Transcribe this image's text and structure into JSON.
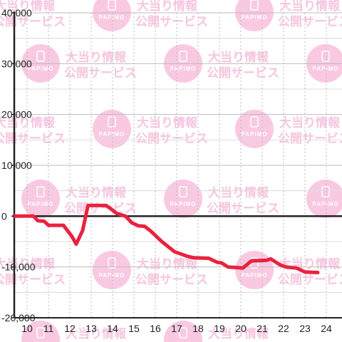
{
  "chart_data": {
    "type": "line",
    "title": "",
    "xlabel": "",
    "ylabel": "",
    "xlim": [
      9.4,
      24.3
    ],
    "ylim": [
      -20000,
      40000
    ],
    "x_ticks": [
      "10",
      "11",
      "12",
      "13",
      "14",
      "15",
      "16",
      "17",
      "18",
      "19",
      "20",
      "21",
      "22",
      "23",
      "24"
    ],
    "y_ticks": [
      "40,000",
      "30,000",
      "20,000",
      "10,000",
      "0",
      "-10,000",
      "-20,000"
    ],
    "y_tick_values": [
      40000,
      30000,
      20000,
      10000,
      0,
      -10000,
      -20000
    ],
    "grid": true,
    "series": [
      {
        "color": "#e8233f",
        "points": [
          [
            9.4,
            0
          ],
          [
            10.3,
            0
          ],
          [
            10.5,
            -900
          ],
          [
            10.8,
            -1000
          ],
          [
            11.0,
            -1800
          ],
          [
            11.7,
            -1800
          ],
          [
            12.1,
            -4000
          ],
          [
            12.3,
            -5500
          ],
          [
            12.6,
            -2800
          ],
          [
            12.85,
            2100
          ],
          [
            13.7,
            2100
          ],
          [
            13.9,
            1500
          ],
          [
            14.2,
            500
          ],
          [
            14.6,
            0
          ],
          [
            14.9,
            -1300
          ],
          [
            15.2,
            -1900
          ],
          [
            15.5,
            -2000
          ],
          [
            15.8,
            -3000
          ],
          [
            16.3,
            -5000
          ],
          [
            16.9,
            -7000
          ],
          [
            17.5,
            -7900
          ],
          [
            17.8,
            -8200
          ],
          [
            18.5,
            -8300
          ],
          [
            18.9,
            -9100
          ],
          [
            19.1,
            -9200
          ],
          [
            19.4,
            -10000
          ],
          [
            20.1,
            -10200
          ],
          [
            20.5,
            -8800
          ],
          [
            21.2,
            -8700
          ],
          [
            21.4,
            -8400
          ],
          [
            21.8,
            -9500
          ],
          [
            22.1,
            -10000
          ],
          [
            22.6,
            -10200
          ],
          [
            23.0,
            -11000
          ],
          [
            23.6,
            -11100
          ]
        ]
      }
    ]
  },
  "watermark": {
    "line1": "大当り情報",
    "line2": "公開サービス",
    "logo": "PAPIMO"
  },
  "colors": {
    "line": "#e8233f",
    "zero_line": "#222222",
    "grid": "#cccccc",
    "watermark": "#f9c9e2"
  }
}
